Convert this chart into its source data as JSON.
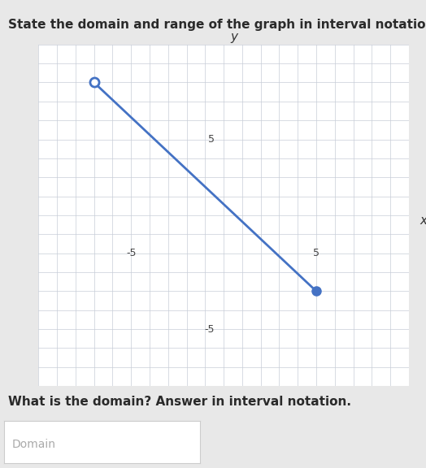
{
  "title": "State the domain and range of the graph in interval notation.",
  "subtitle": "What is the domain? Answer in interval notation.",
  "placeholder": "Domain",
  "x_start": -7,
  "y_start": 8,
  "x_end": 5,
  "y_end": -3,
  "open_start": true,
  "closed_end": true,
  "line_color": "#4472C4",
  "grid_color": "#c8cdd8",
  "axis_color": "#555555",
  "background_color": "#e8e8e8",
  "plot_bg": "#f0f0f0",
  "xlim": [
    -10,
    10
  ],
  "ylim": [
    -8,
    10
  ],
  "xlabel": "x",
  "ylabel": "y",
  "title_fontsize": 11,
  "subtitle_fontsize": 11,
  "placeholder_fontsize": 10,
  "marker_size": 8
}
